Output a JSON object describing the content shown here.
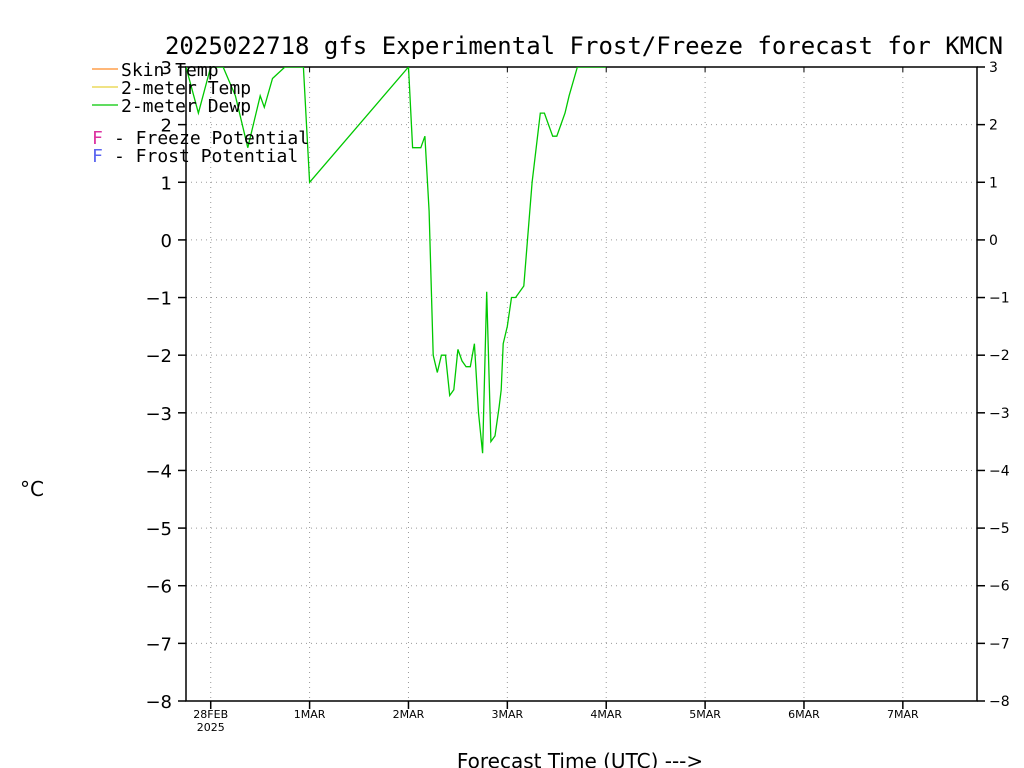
{
  "chart_data": {
    "type": "line",
    "title": "2025022718 gfs Experimental Frost/Freeze forecast for KMCN",
    "ylabel": "°C",
    "xlabel": "Forecast Time (UTC) --->",
    "ylim": [
      -8,
      3
    ],
    "xlim": [
      "2025-02-27T18:00Z",
      "2025-03-07T18:00Z"
    ],
    "grid": true,
    "y_ticks": [
      3,
      2,
      1,
      0,
      -1,
      -2,
      -3,
      -4,
      -5,
      -6,
      -7,
      -8
    ],
    "y_tick_labels": [
      "3",
      "2",
      "1",
      "0",
      "−1",
      "−2",
      "−3",
      "−4",
      "−5",
      "−6",
      "−7",
      "−8"
    ],
    "x_ticks": [
      {
        "value": "2025-02-28T00:00Z",
        "label": "28FEB",
        "sublabel": "2025"
      },
      {
        "value": "2025-03-01T00:00Z",
        "label": "1MAR"
      },
      {
        "value": "2025-03-02T00:00Z",
        "label": "2MAR"
      },
      {
        "value": "2025-03-03T00:00Z",
        "label": "3MAR"
      },
      {
        "value": "2025-03-04T00:00Z",
        "label": "4MAR"
      },
      {
        "value": "2025-03-05T00:00Z",
        "label": "5MAR"
      },
      {
        "value": "2025-03-06T00:00Z",
        "label": "6MAR"
      },
      {
        "value": "2025-03-07T00:00Z",
        "label": "7MAR"
      }
    ],
    "legend": {
      "placement": "top-left",
      "items": [
        {
          "label": "Skin Temp",
          "color": "#ff8c28"
        },
        {
          "label": "2-meter Temp",
          "color": "#e8d23c"
        },
        {
          "label": "2-meter Dewp",
          "color": "#00c800"
        }
      ],
      "potentials": [
        {
          "marker": "F",
          "label": "- Freeze Potential",
          "color": "#dc32a0"
        },
        {
          "marker": "F",
          "label": "- Frost Potential",
          "color": "#5a64f0"
        }
      ]
    },
    "series": [
      {
        "name": "2-meter Dewp",
        "color": "#00c800",
        "x": [
          "2025-02-27T18:00Z",
          "2025-02-27T21:00Z",
          "2025-02-28T00:00Z",
          "2025-02-28T03:00Z",
          "2025-02-28T06:00Z",
          "2025-02-28T09:00Z",
          "2025-02-28T12:00Z",
          "2025-02-28T13:00Z",
          "2025-02-28T15:00Z",
          "2025-02-28T18:00Z",
          "2025-02-28T21:00Z",
          "2025-02-28T22:30Z",
          "2025-03-01T00:00Z",
          "2025-03-02T00:00Z",
          "2025-03-02T01:00Z",
          "2025-03-02T03:00Z",
          "2025-03-02T04:00Z",
          "2025-03-02T05:00Z",
          "2025-03-02T06:00Z",
          "2025-03-02T07:00Z",
          "2025-03-02T08:00Z",
          "2025-03-02T09:00Z",
          "2025-03-02T10:00Z",
          "2025-03-02T11:00Z",
          "2025-03-02T12:00Z",
          "2025-03-02T13:00Z",
          "2025-03-02T14:00Z",
          "2025-03-02T15:00Z",
          "2025-03-02T16:00Z",
          "2025-03-02T17:00Z",
          "2025-03-02T18:00Z",
          "2025-03-02T19:00Z",
          "2025-03-02T20:00Z",
          "2025-03-02T21:00Z",
          "2025-03-02T22:00Z",
          "2025-03-02T22:30Z",
          "2025-03-02T23:00Z",
          "2025-03-03T00:00Z",
          "2025-03-03T01:00Z",
          "2025-03-03T02:00Z",
          "2025-03-03T03:00Z",
          "2025-03-03T04:00Z",
          "2025-03-03T06:00Z",
          "2025-03-03T08:00Z",
          "2025-03-03T09:00Z",
          "2025-03-03T10:00Z",
          "2025-03-03T11:00Z",
          "2025-03-03T12:00Z",
          "2025-03-03T13:00Z",
          "2025-03-03T14:00Z",
          "2025-03-03T15:00Z",
          "2025-03-03T17:00Z",
          "2025-03-03T18:00Z",
          "2025-03-03T19:00Z",
          "2025-03-03T20:00Z",
          "2025-03-03T21:00Z",
          "2025-03-03T22:00Z",
          "2025-03-03T23:00Z",
          "2025-03-04T00:00Z"
        ],
        "y": [
          3.0,
          2.2,
          3.0,
          3.0,
          2.5,
          1.6,
          2.5,
          2.3,
          2.8,
          3.0,
          3.0,
          3.0,
          1.0,
          3.0,
          1.6,
          1.6,
          1.8,
          0.5,
          -2.0,
          -2.3,
          -2.0,
          -2.0,
          -2.7,
          -2.6,
          -1.9,
          -2.1,
          -2.2,
          -2.2,
          -1.8,
          -3.0,
          -3.7,
          -0.9,
          -3.5,
          -3.4,
          -2.9,
          -2.6,
          -1.8,
          -1.5,
          -1.0,
          -1.0,
          -0.9,
          -0.8,
          1.0,
          2.2,
          2.2,
          2.0,
          1.8,
          1.8,
          2.0,
          2.2,
          2.5,
          3.0,
          3.0,
          3.0,
          3.0,
          3.0,
          3.0,
          3.0,
          3.0
        ]
      }
    ]
  }
}
